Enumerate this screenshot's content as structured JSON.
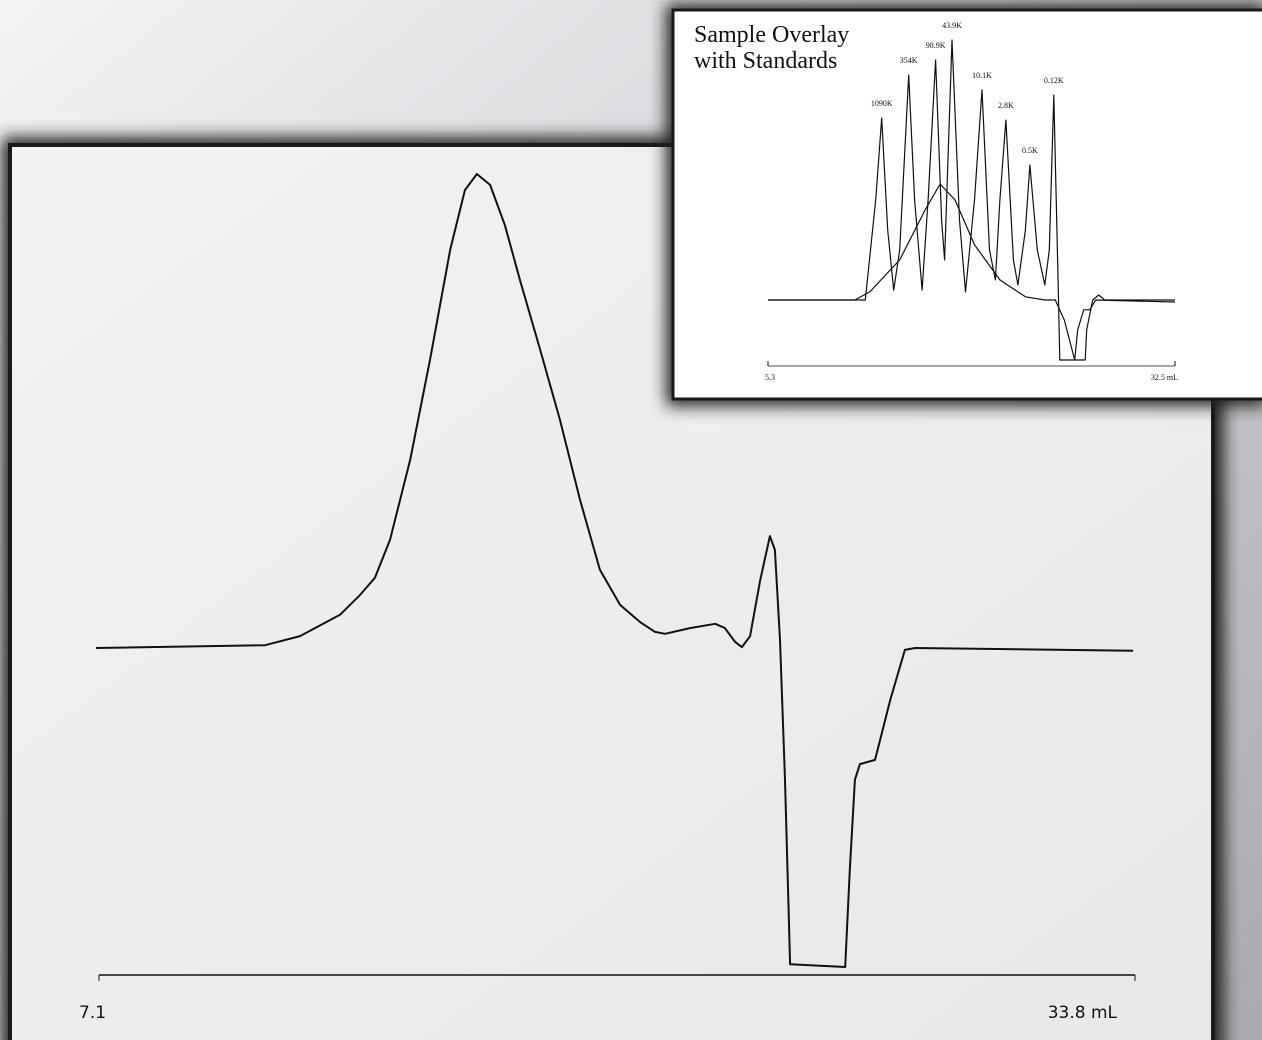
{
  "chart_data": [
    {
      "type": "line",
      "xlim": [
        7.1,
        33.8
      ],
      "xticks": [
        7.1,
        {
          "value": 33.8,
          "label": "33.8 mL"
        }
      ],
      "series": [
        {
          "color": "#111111",
          "x": [
            7.02,
            11.38,
            12.28,
            13.31,
            13.83,
            14.21,
            14.6,
            15.12,
            15.63,
            16.15,
            16.53,
            16.84,
            17.18,
            17.56,
            17.95,
            18.47,
            18.98,
            19.5,
            20.01,
            20.53,
            21.04,
            21.43,
            21.69,
            22.33,
            22.98,
            23.23,
            23.49,
            23.67,
            23.88,
            24.14,
            24.39,
            24.52,
            24.65,
            24.78,
            24.91,
            26.33,
            26.45,
            26.58,
            26.71,
            27.1,
            27.23,
            27.49,
            27.87,
            28.13,
            33.75
          ],
          "values": [
            0,
            0.6,
            2.5,
            7,
            11.2,
            14.8,
            22.8,
            39.7,
            60.8,
            84,
            96.6,
            100,
            97.7,
            89.2,
            77.6,
            62.9,
            48.1,
            31.2,
            16.5,
            9.1,
            5.5,
            3.4,
            3,
            4.2,
            5.1,
            4.2,
            1.3,
            0.2,
            2.5,
            14.3,
            23.6,
            20.7,
            1.7,
            -27.8,
            -66.7,
            -67.3,
            -46.8,
            -27.8,
            -24.5,
            -23.6,
            -19.4,
            -11,
            -0.4,
            0,
            -0.6
          ]
        }
      ]
    },
    {
      "type": "line",
      "title": "Sample Overlay with Standards",
      "xlim": [
        5.3,
        32.5
      ],
      "xticks": [
        5.3,
        {
          "value": 32.5,
          "label": "32.5 mL"
        }
      ],
      "series": [
        {
          "color": "#111111",
          "x": [
            5.3,
            11.8,
            12.5,
            12.9,
            13.3,
            13.7,
            14.1,
            14.7,
            15.1,
            15.6,
            16.0,
            16.5,
            16.9,
            17.1,
            17.6,
            18.1,
            18.5,
            19.1,
            19.6,
            20.1,
            20.5,
            20.8,
            21.2,
            21.7,
            22.0,
            22.5,
            22.8,
            23.3,
            23.8,
            24.1,
            24.4,
            24.7,
            24.8,
            25.8,
            26.0,
            26.4,
            26.8,
            27.2,
            32.5
          ],
          "values": [
            0,
            0,
            38.5,
            70,
            26.9,
            3.8,
            19.2,
            86.5,
            38.5,
            3.8,
            38.5,
            92.3,
            30.8,
            15.4,
            100,
            30.8,
            3.1,
            38.5,
            80.8,
            19.2,
            7.7,
            38.5,
            69.2,
            15.4,
            5.8,
            26.9,
            51.9,
            19.2,
            5.8,
            19.2,
            78.8,
            3.8,
            -23.1,
            -23.1,
            -11.5,
            -3.8,
            -3.8,
            0,
            -0.8
          ]
        },
        {
          "color": "#111111",
          "x": [
            5.3,
            11.1,
            12.1,
            14.1,
            15.8,
            16.8,
            17.8,
            19.1,
            20.8,
            22.5,
            23.8,
            24.5,
            25.1,
            25.8,
            26.5,
            26.6,
            27.0,
            27.4,
            27.8,
            32.5
          ],
          "values": [
            0,
            0,
            3.1,
            15.4,
            34.6,
            44.6,
            38.5,
            21.2,
            7.7,
            1.2,
            0,
            0,
            -7.7,
            -23.1,
            -23.1,
            -11.5,
            0,
            1.9,
            0,
            0
          ]
        }
      ],
      "peak_labels": [
        {
          "x": 12.9,
          "label": "1090K"
        },
        {
          "x": 14.7,
          "label": "354K"
        },
        {
          "x": 16.5,
          "label": "98.9K"
        },
        {
          "x": 17.6,
          "label": "43.9K"
        },
        {
          "x": 19.6,
          "label": "10.1K"
        },
        {
          "x": 21.2,
          "label": "2.8K"
        },
        {
          "x": 22.8,
          "label": "0.5K"
        },
        {
          "x": 24.4,
          "label": "0.12K"
        }
      ]
    }
  ]
}
